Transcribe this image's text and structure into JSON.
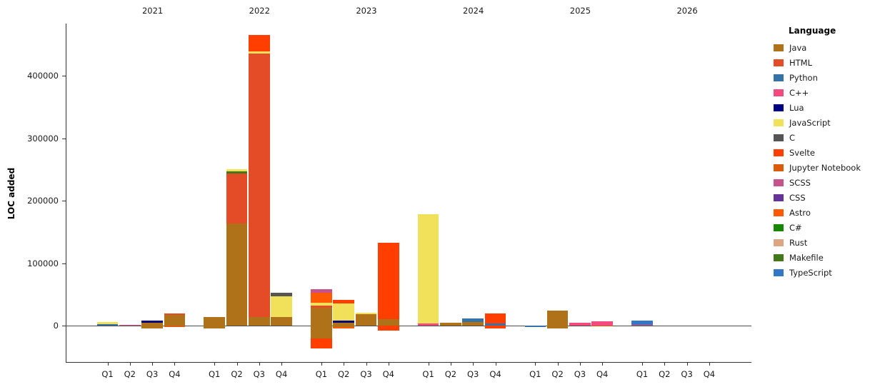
{
  "chart_data": {
    "type": "bar",
    "stacked": true,
    "title": "",
    "xlabel": "",
    "ylabel": "LOC added",
    "legend_title": "Language",
    "legend_position": "right",
    "grid": false,
    "ylim": [
      -60000,
      481000
    ],
    "yticks": [
      {
        "value": 0,
        "label": "0"
      },
      {
        "value": 100000,
        "label": "100000"
      },
      {
        "value": 200000,
        "label": "200000"
      },
      {
        "value": 300000,
        "label": "300000"
      },
      {
        "value": 400000,
        "label": "400000"
      }
    ],
    "years": [
      "2021",
      "2022",
      "2023",
      "2024",
      "2025",
      "2026"
    ],
    "quarters": [
      "Q1",
      "Q2",
      "Q3",
      "Q4"
    ],
    "legend": [
      {
        "name": "Java",
        "color": "#b07219"
      },
      {
        "name": "HTML",
        "color": "#e34c26"
      },
      {
        "name": "Python",
        "color": "#3572A5"
      },
      {
        "name": "C++",
        "color": "#f34b7d"
      },
      {
        "name": "Lua",
        "color": "#000080"
      },
      {
        "name": "JavaScript",
        "color": "#f1e05a"
      },
      {
        "name": "C",
        "color": "#555555"
      },
      {
        "name": "Svelte",
        "color": "#ff3e00"
      },
      {
        "name": "Jupyter Notebook",
        "color": "#DA5B0B"
      },
      {
        "name": "SCSS",
        "color": "#c6538c"
      },
      {
        "name": "CSS",
        "color": "#663399"
      },
      {
        "name": "Astro",
        "color": "#ff5a03"
      },
      {
        "name": "C#",
        "color": "#178600"
      },
      {
        "name": "Rust",
        "color": "#dea584"
      },
      {
        "name": "Makefile",
        "color": "#427819"
      },
      {
        "name": "TypeScript",
        "color": "#3178c6"
      }
    ],
    "bars": [
      {
        "year": "2021",
        "quarter": "Q1",
        "pos": [
          {
            "lang": "Python",
            "value": 2000
          },
          {
            "lang": "JavaScript",
            "value": 3500
          }
        ],
        "neg": []
      },
      {
        "year": "2021",
        "quarter": "Q2",
        "pos": [
          {
            "lang": "C++",
            "value": 1500
          }
        ],
        "neg": []
      },
      {
        "year": "2021",
        "quarter": "Q3",
        "pos": [
          {
            "lang": "Java",
            "value": 5000
          },
          {
            "lang": "Lua",
            "value": 3000
          }
        ],
        "neg": [
          {
            "lang": "Java",
            "value": -4500
          }
        ]
      },
      {
        "year": "2021",
        "quarter": "Q4",
        "pos": [
          {
            "lang": "Java",
            "value": 17000
          },
          {
            "lang": "HTML",
            "value": 2500
          }
        ],
        "neg": [
          {
            "lang": "Jupyter Notebook",
            "value": -2000
          }
        ]
      },
      {
        "year": "2022",
        "quarter": "Q1",
        "pos": [
          {
            "lang": "Java",
            "value": 14000
          }
        ],
        "neg": [
          {
            "lang": "Java",
            "value": -5000
          }
        ]
      },
      {
        "year": "2022",
        "quarter": "Q2",
        "pos": [
          {
            "lang": "Java",
            "value": 164000
          },
          {
            "lang": "HTML",
            "value": 80000
          },
          {
            "lang": "Makefile",
            "value": 2500
          },
          {
            "lang": "JavaScript",
            "value": 3500
          }
        ],
        "neg": []
      },
      {
        "year": "2022",
        "quarter": "Q3",
        "pos": [
          {
            "lang": "Java",
            "value": 14000
          },
          {
            "lang": "HTML",
            "value": 421000
          },
          {
            "lang": "JavaScript",
            "value": 4000
          },
          {
            "lang": "Svelte",
            "value": 26500
          }
        ],
        "neg": []
      },
      {
        "year": "2022",
        "quarter": "Q4",
        "pos": [
          {
            "lang": "Java",
            "value": 13500
          },
          {
            "lang": "JavaScript",
            "value": 33000
          },
          {
            "lang": "C",
            "value": 6000
          }
        ],
        "neg": []
      },
      {
        "year": "2023",
        "quarter": "Q1",
        "pos": [
          {
            "lang": "Java",
            "value": 29000
          },
          {
            "lang": "HTML",
            "value": 3000
          },
          {
            "lang": "JavaScript",
            "value": 5000
          },
          {
            "lang": "Astro",
            "value": 16000
          },
          {
            "lang": "SCSS",
            "value": 5500
          }
        ],
        "neg": [
          {
            "lang": "Java",
            "value": -20000
          },
          {
            "lang": "Svelte",
            "value": -16500
          }
        ]
      },
      {
        "year": "2023",
        "quarter": "Q2",
        "pos": [
          {
            "lang": "Java",
            "value": 4500
          },
          {
            "lang": "Lua",
            "value": 3500
          },
          {
            "lang": "JavaScript",
            "value": 27000
          },
          {
            "lang": "Svelte",
            "value": 6500
          }
        ],
        "neg": [
          {
            "lang": "Java",
            "value": -2500
          },
          {
            "lang": "Astro",
            "value": -2500
          }
        ]
      },
      {
        "year": "2023",
        "quarter": "Q3",
        "pos": [
          {
            "lang": "Java",
            "value": 18000
          },
          {
            "lang": "JavaScript",
            "value": 3000
          }
        ],
        "neg": []
      },
      {
        "year": "2023",
        "quarter": "Q4",
        "pos": [
          {
            "lang": "Java",
            "value": 10000
          },
          {
            "lang": "Svelte",
            "value": 123000
          }
        ],
        "neg": [
          {
            "lang": "Svelte",
            "value": -8000
          }
        ]
      },
      {
        "year": "2024",
        "quarter": "Q1",
        "pos": [
          {
            "lang": "C++",
            "value": 3000
          },
          {
            "lang": "JavaScript",
            "value": 175000
          }
        ],
        "neg": []
      },
      {
        "year": "2024",
        "quarter": "Q2",
        "pos": [
          {
            "lang": "Java",
            "value": 4500
          }
        ],
        "neg": []
      },
      {
        "year": "2024",
        "quarter": "Q3",
        "pos": [
          {
            "lang": "Java",
            "value": 6000
          },
          {
            "lang": "Python",
            "value": 5000
          }
        ],
        "neg": []
      },
      {
        "year": "2024",
        "quarter": "Q4",
        "pos": [
          {
            "lang": "Python",
            "value": 3000
          },
          {
            "lang": "Svelte",
            "value": 17000
          }
        ],
        "neg": [
          {
            "lang": "Svelte",
            "value": -4000
          }
        ]
      },
      {
        "year": "2025",
        "quarter": "Q1",
        "pos": [],
        "neg": [
          {
            "lang": "Python",
            "value": -2000
          }
        ]
      },
      {
        "year": "2025",
        "quarter": "Q2",
        "pos": [
          {
            "lang": "Java",
            "value": 24500
          }
        ],
        "neg": [
          {
            "lang": "Java",
            "value": -4000
          }
        ]
      },
      {
        "year": "2025",
        "quarter": "Q3",
        "pos": [
          {
            "lang": "C++",
            "value": 4500
          }
        ],
        "neg": []
      },
      {
        "year": "2025",
        "quarter": "Q4",
        "pos": [
          {
            "lang": "C++",
            "value": 6500
          }
        ],
        "neg": [
          {
            "lang": "Jupyter Notebook",
            "value": -1500
          }
        ]
      },
      {
        "year": "2026",
        "quarter": "Q1",
        "pos": [
          {
            "lang": "C++",
            "value": 1500
          },
          {
            "lang": "TypeScript",
            "value": 7000
          }
        ],
        "neg": []
      },
      {
        "year": "2026",
        "quarter": "Q2",
        "pos": [],
        "neg": []
      },
      {
        "year": "2026",
        "quarter": "Q3",
        "pos": [],
        "neg": []
      },
      {
        "year": "2026",
        "quarter": "Q4",
        "pos": [],
        "neg": []
      }
    ]
  }
}
